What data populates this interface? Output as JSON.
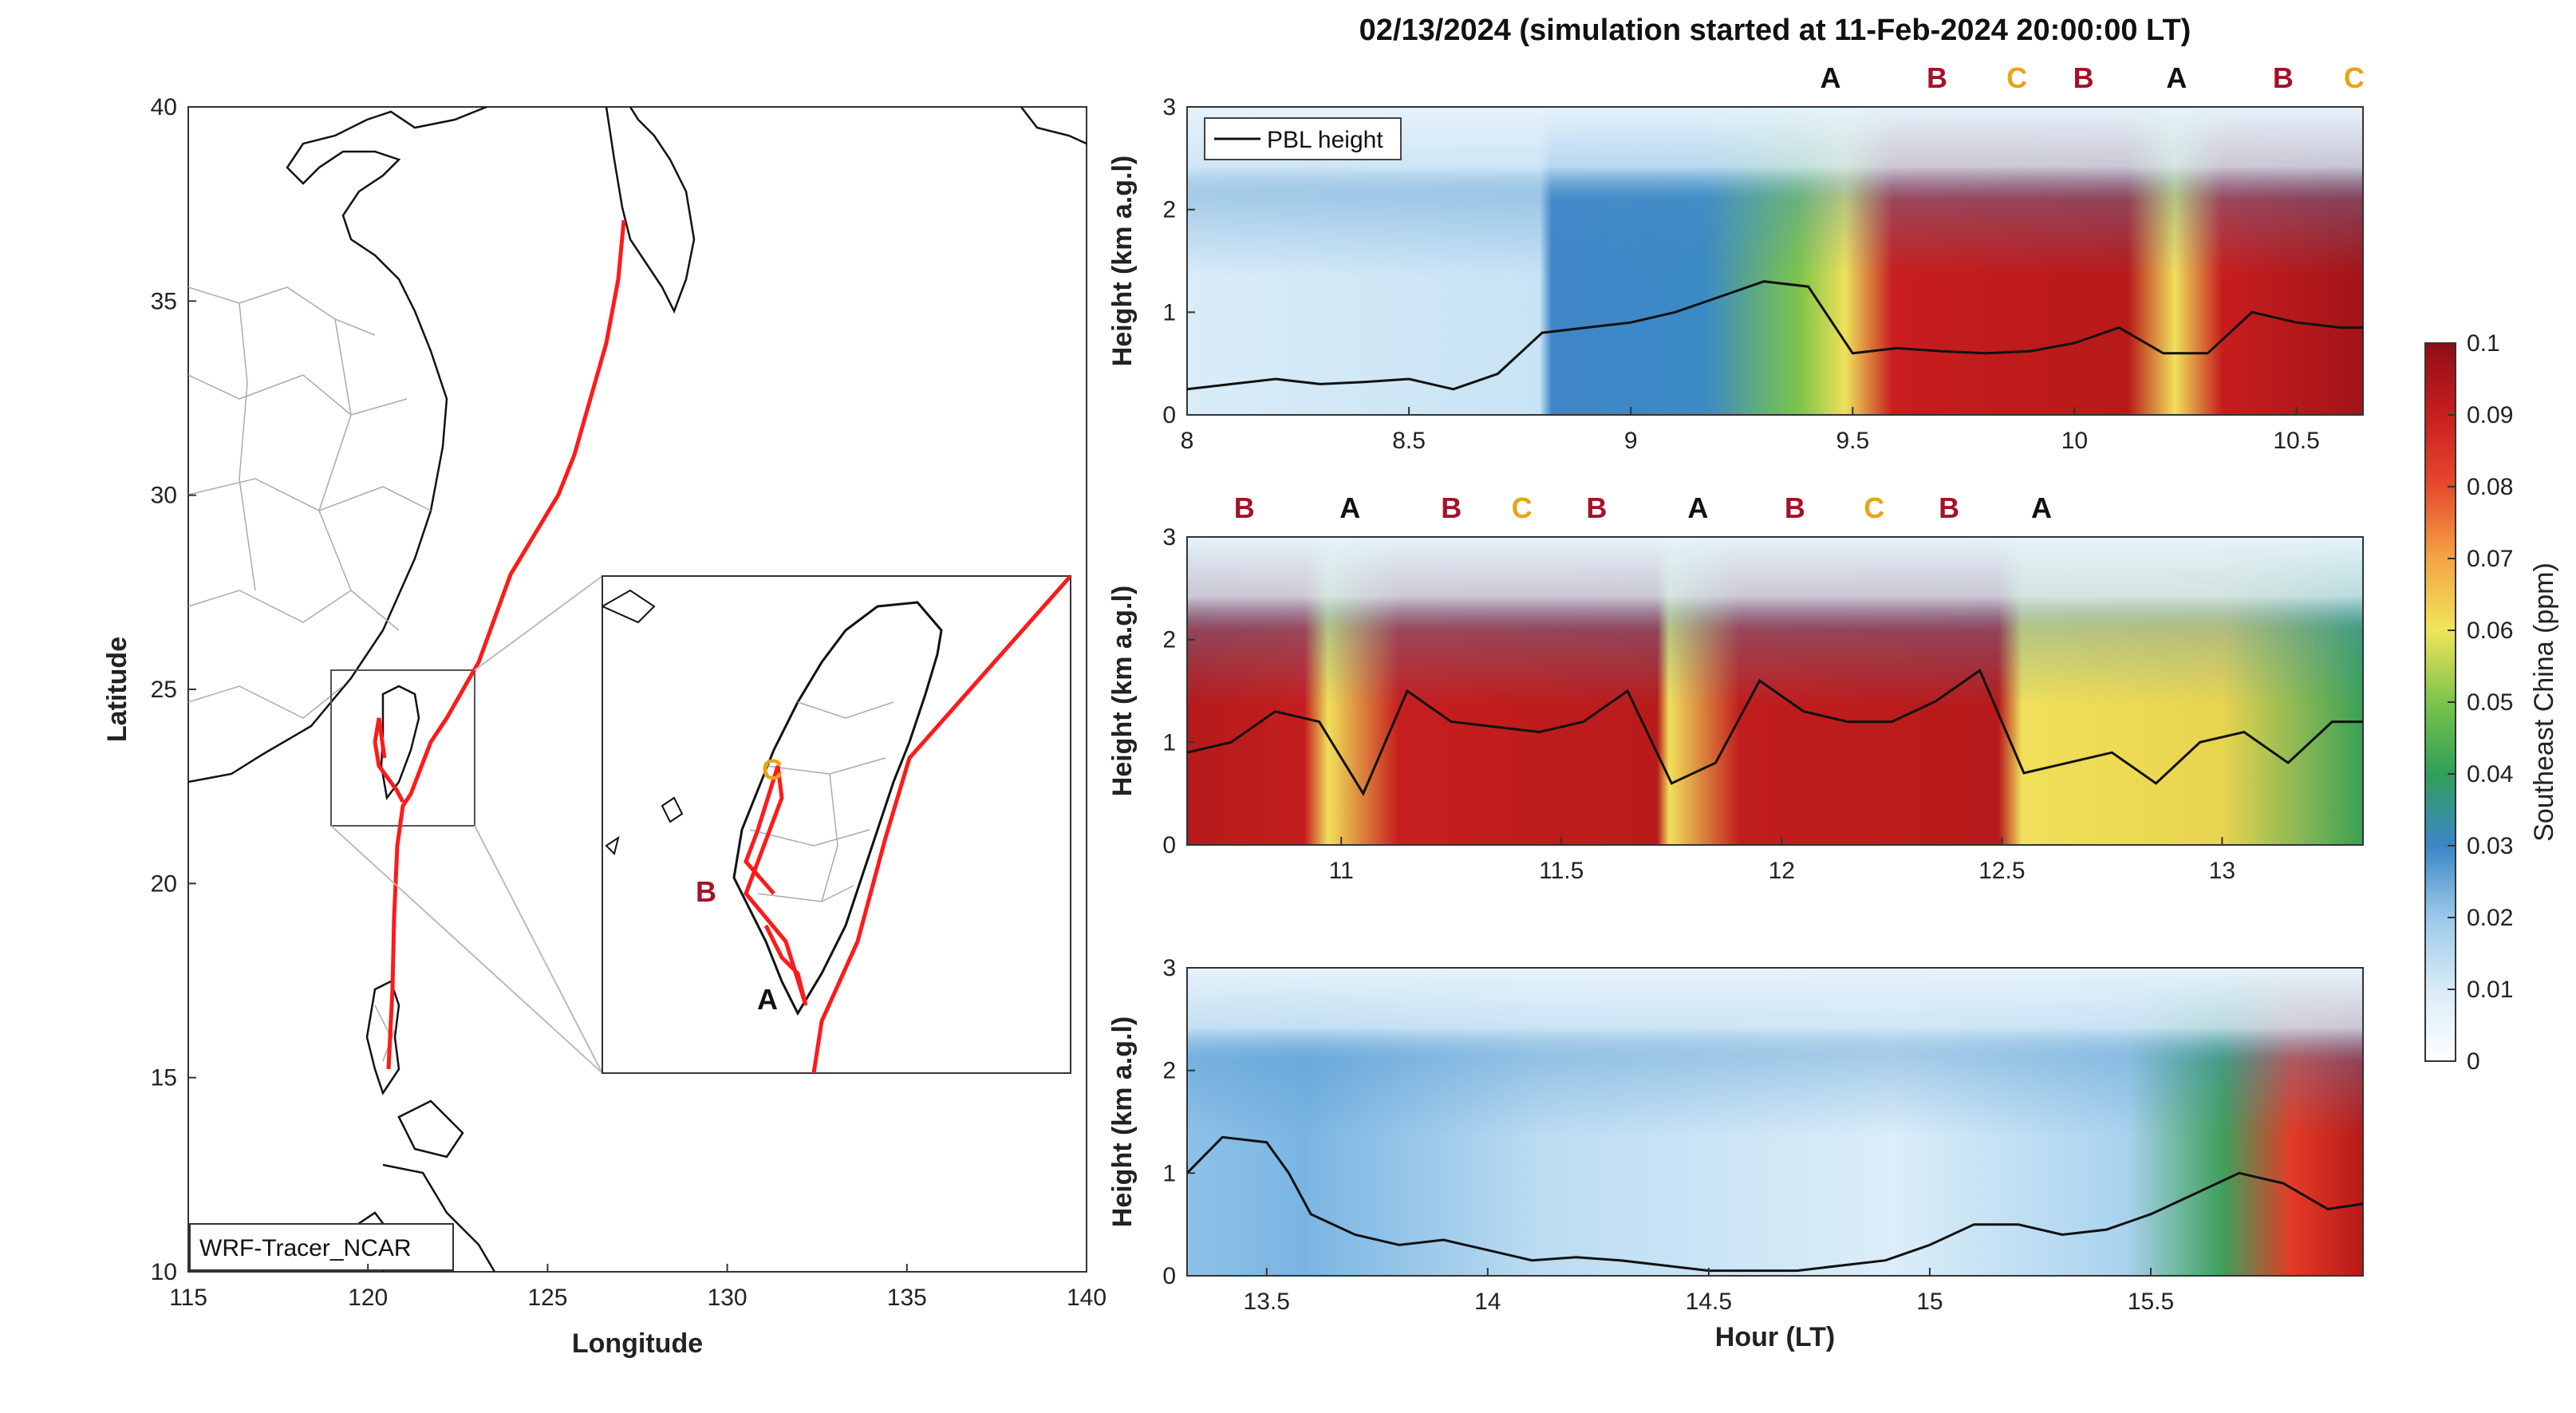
{
  "title": "02/13/2024 (simulation started at 11-Feb-2024 20:00:00 LT)",
  "colors": {
    "A": "#111111",
    "B": "#a3122a",
    "C": "#e8a317",
    "track": "#ff1a1a"
  },
  "map": {
    "xlabel": "Longitude",
    "ylabel": "Latitude",
    "xticks": [
      "115",
      "120",
      "125",
      "130",
      "135",
      "140"
    ],
    "yticks": [
      "10",
      "15",
      "20",
      "25",
      "30",
      "35",
      "40"
    ],
    "xlim": [
      115,
      140
    ],
    "ylim": [
      10,
      40
    ],
    "label_box": "WRF-Tracer_NCAR",
    "inset_labels": {
      "A": "A",
      "B": "B",
      "C": "C"
    }
  },
  "chart_data": [
    {
      "type": "heatmap",
      "xlabel": "",
      "ylabel": "Height (km a.g.l)",
      "xlim": [
        8,
        10.65
      ],
      "ylim": [
        0,
        3
      ],
      "xticks": [
        "8",
        "8.5",
        "9",
        "9.5",
        "10",
        "10.5"
      ],
      "yticks": [
        "0",
        "1",
        "2",
        "3"
      ],
      "legend": "PBL height",
      "legend_position": "top-left",
      "markers": [
        {
          "label": "A",
          "x": 9.45
        },
        {
          "label": "B",
          "x": 9.69
        },
        {
          "label": "C",
          "x": 9.87
        },
        {
          "label": "B",
          "x": 10.02
        },
        {
          "label": "A",
          "x": 10.23
        },
        {
          "label": "B",
          "x": 10.47
        },
        {
          "label": "C",
          "x": 10.63
        }
      ],
      "pbl_x": [
        8.0,
        8.1,
        8.2,
        8.3,
        8.4,
        8.5,
        8.6,
        8.7,
        8.8,
        8.9,
        9.0,
        9.1,
        9.2,
        9.3,
        9.4,
        9.5,
        9.6,
        9.7,
        9.8,
        9.9,
        10.0,
        10.1,
        10.2,
        10.3,
        10.4,
        10.5,
        10.6,
        10.65
      ],
      "pbl_y": [
        0.25,
        0.3,
        0.35,
        0.3,
        0.32,
        0.35,
        0.25,
        0.4,
        0.8,
        0.85,
        0.9,
        1.0,
        1.15,
        1.3,
        1.25,
        0.6,
        0.65,
        0.62,
        0.6,
        0.62,
        0.7,
        0.85,
        0.6,
        0.6,
        1.0,
        0.9,
        0.85,
        0.85
      ]
    },
    {
      "type": "heatmap",
      "xlabel": "",
      "ylabel": "Height (km a.g.l)",
      "xlim": [
        10.65,
        13.32
      ],
      "ylim": [
        0,
        3
      ],
      "xticks": [
        "11",
        "11.5",
        "12",
        "12.5",
        "13"
      ],
      "yticks": [
        "0",
        "1",
        "2",
        "3"
      ],
      "markers": [
        {
          "label": "B",
          "x": 10.78
        },
        {
          "label": "A",
          "x": 11.02
        },
        {
          "label": "B",
          "x": 11.25
        },
        {
          "label": "C",
          "x": 11.41
        },
        {
          "label": "B",
          "x": 11.58
        },
        {
          "label": "A",
          "x": 11.81
        },
        {
          "label": "B",
          "x": 12.03
        },
        {
          "label": "C",
          "x": 12.21
        },
        {
          "label": "B",
          "x": 12.38
        },
        {
          "label": "A",
          "x": 12.59
        }
      ],
      "pbl_x": [
        10.65,
        10.75,
        10.85,
        10.95,
        11.05,
        11.15,
        11.25,
        11.35,
        11.45,
        11.55,
        11.65,
        11.75,
        11.85,
        11.95,
        12.05,
        12.15,
        12.25,
        12.35,
        12.45,
        12.55,
        12.65,
        12.75,
        12.85,
        12.95,
        13.05,
        13.15,
        13.25,
        13.32
      ],
      "pbl_y": [
        0.9,
        1.0,
        1.3,
        1.2,
        0.5,
        1.5,
        1.2,
        1.15,
        1.1,
        1.2,
        1.5,
        0.6,
        0.8,
        1.6,
        1.3,
        1.2,
        1.2,
        1.4,
        1.7,
        0.7,
        0.8,
        0.9,
        0.6,
        1.0,
        1.1,
        0.8,
        1.2,
        1.2
      ]
    },
    {
      "type": "heatmap",
      "xlabel": "Hour (LT)",
      "ylabel": "Height (km a.g.l)",
      "xlim": [
        13.32,
        15.98
      ],
      "ylim": [
        0,
        3
      ],
      "xticks": [
        "13.5",
        "14",
        "14.5",
        "15",
        "15.5"
      ],
      "yticks": [
        "0",
        "1",
        "2",
        "3"
      ],
      "pbl_x": [
        13.32,
        13.4,
        13.5,
        13.55,
        13.6,
        13.7,
        13.8,
        13.9,
        14.0,
        14.1,
        14.2,
        14.3,
        14.4,
        14.5,
        14.6,
        14.7,
        14.8,
        14.9,
        15.0,
        15.1,
        15.2,
        15.3,
        15.4,
        15.5,
        15.6,
        15.7,
        15.8,
        15.9,
        15.98
      ],
      "pbl_y": [
        1.0,
        1.35,
        1.3,
        1.0,
        0.6,
        0.4,
        0.3,
        0.35,
        0.25,
        0.15,
        0.18,
        0.15,
        0.1,
        0.05,
        0.05,
        0.05,
        0.1,
        0.15,
        0.3,
        0.5,
        0.5,
        0.4,
        0.45,
        0.6,
        0.8,
        1.0,
        0.9,
        0.65,
        0.7
      ]
    }
  ],
  "colorbar": {
    "label": "Southeast China (ppm)",
    "ticks": [
      "0",
      "0.01",
      "0.02",
      "0.03",
      "0.04",
      "0.05",
      "0.06",
      "0.07",
      "0.08",
      "0.09",
      "0.1"
    ]
  }
}
